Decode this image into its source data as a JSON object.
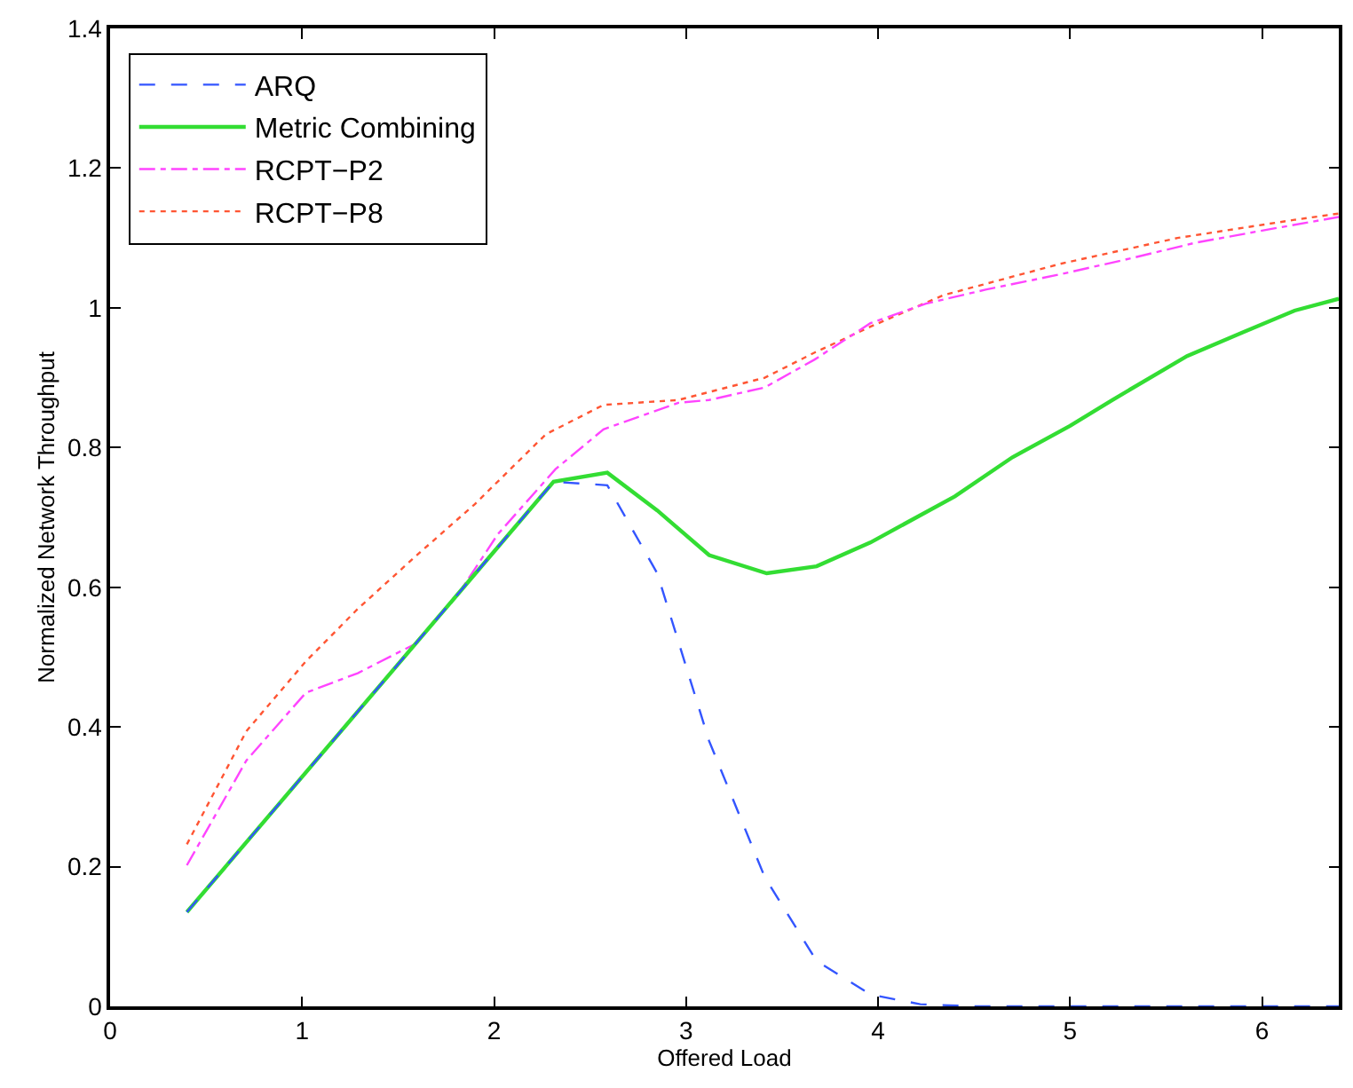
{
  "chart_data": {
    "type": "line",
    "xlabel": "Offered Load",
    "ylabel": "Normalized Network Throughput",
    "xlim": [
      0,
      6.4
    ],
    "xticks": [
      0,
      1,
      2,
      3,
      4,
      5,
      6
    ],
    "ylim": [
      0,
      1.4
    ],
    "yticks": [
      0,
      0.2,
      0.4,
      0.6,
      0.8,
      1,
      1.2,
      1.4
    ],
    "grid": false,
    "legend": "top left",
    "marker": "none",
    "series": [
      {
        "name": "ARQ",
        "color": "#3355ff",
        "line_style": "dashed",
        "x": [
          0.4,
          2.31,
          2.59,
          2.85,
          3.12,
          3.41,
          3.68,
          3.96,
          4.22,
          4.5,
          6.4
        ],
        "values": [
          0.135,
          0.751,
          0.746,
          0.62,
          0.38,
          0.185,
          0.065,
          0.017,
          0.003,
          0,
          0
        ]
      },
      {
        "name": "Metric Combining",
        "color": "#33dd33",
        "line_style": "solid",
        "x": [
          0.4,
          2.31,
          2.59,
          2.85,
          3.12,
          3.42,
          3.68,
          3.96,
          4.4,
          4.7,
          5.0,
          5.22,
          5.61,
          5.9,
          6.17,
          6.4
        ],
        "values": [
          0.135,
          0.751,
          0.764,
          0.71,
          0.646,
          0.62,
          0.63,
          0.664,
          0.73,
          0.786,
          0.831,
          0.868,
          0.931,
          0.965,
          0.996,
          1.013
        ]
      },
      {
        "name": "RCPT−P2",
        "color": "#ff44ff",
        "line_style": "dashdot",
        "x": [
          0.4,
          0.71,
          1.02,
          1.29,
          1.59,
          1.81,
          2.02,
          2.32,
          2.57,
          2.96,
          3.12,
          3.41,
          3.67,
          3.96,
          4.25,
          4.56,
          4.95,
          5.32,
          5.65,
          6.05,
          6.4
        ],
        "values": [
          0.202,
          0.352,
          0.449,
          0.477,
          0.519,
          0.589,
          0.676,
          0.769,
          0.826,
          0.864,
          0.868,
          0.886,
          0.926,
          0.978,
          1.006,
          1.026,
          1.048,
          1.071,
          1.093,
          1.113,
          1.13
        ]
      },
      {
        "name": "RCPT−P8",
        "color": "#ff5533",
        "line_style": "dotted",
        "x": [
          0.4,
          0.71,
          1.02,
          1.29,
          1.59,
          1.9,
          2.27,
          2.57,
          2.96,
          3.41,
          3.67,
          3.96,
          4.34,
          4.95,
          5.56,
          6.17,
          6.4
        ],
        "values": [
          0.232,
          0.394,
          0.494,
          0.569,
          0.644,
          0.719,
          0.819,
          0.861,
          0.868,
          0.9,
          0.936,
          0.973,
          1.018,
          1.063,
          1.1,
          1.126,
          1.135
        ]
      }
    ]
  }
}
